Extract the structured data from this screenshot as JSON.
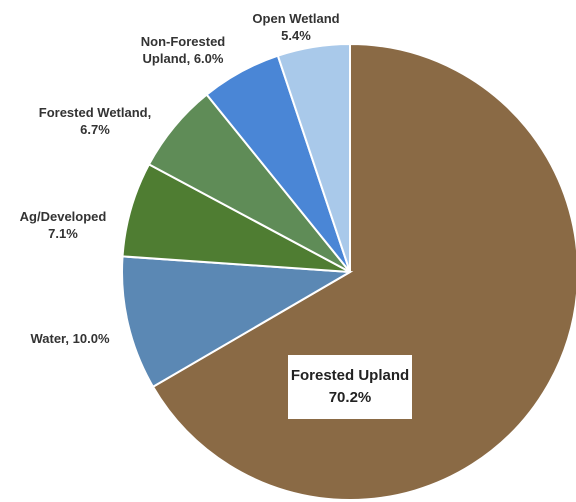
{
  "chart_data": {
    "type": "pie",
    "categories": [
      "Forested Upland",
      "Water,",
      "Ag/Developed",
      "Forested Wetland,",
      "Non-Forested Upland,",
      "Open Wetland"
    ],
    "values": [
      70.2,
      10.0,
      7.1,
      6.7,
      6.0,
      5.4
    ],
    "value_labels": [
      "70.2%",
      "10.0%",
      "7.1%",
      "6.7%",
      "6.0%",
      "5.4%"
    ],
    "colors": [
      "#8a6a45",
      "#5b88b4",
      "#4f7d32",
      "#5f8c57",
      "#4a86d6",
      "#a9c9ea"
    ]
  }
}
